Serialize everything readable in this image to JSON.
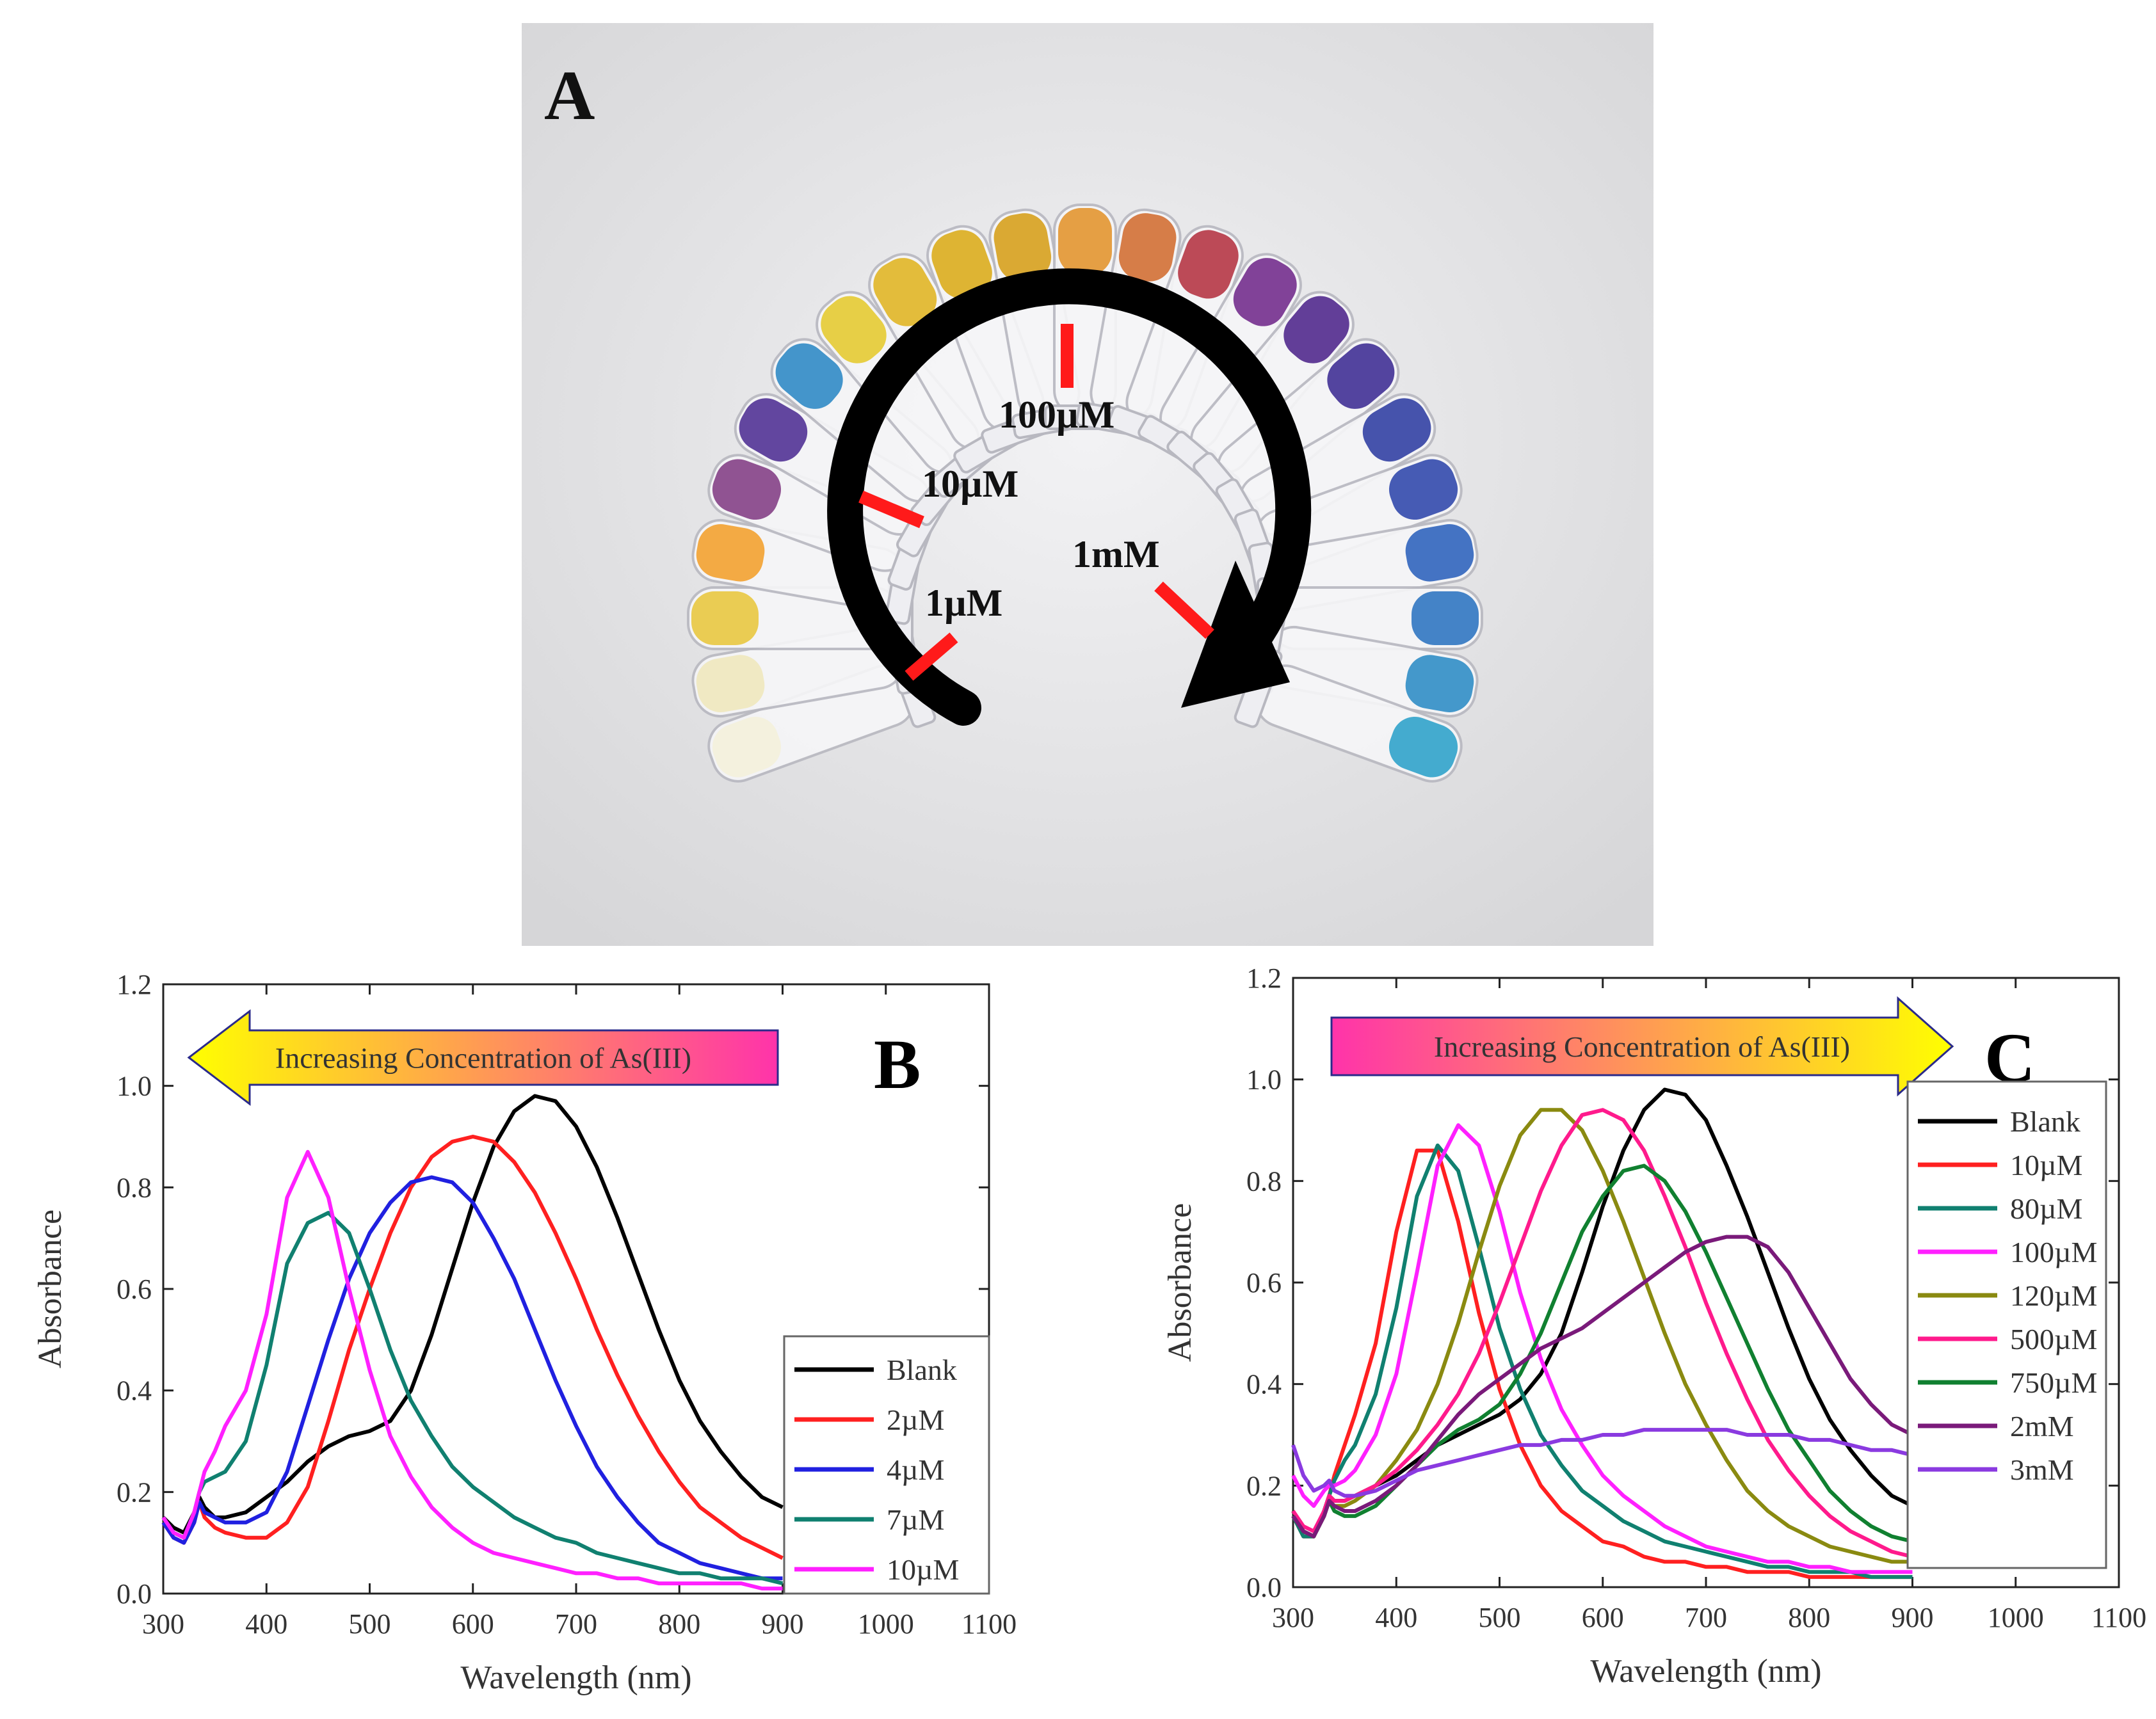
{
  "panel_a": {
    "label": "A",
    "markers": [
      "100µM",
      "10µM",
      "1µM",
      "1mM"
    ],
    "tube_colors": [
      "#f3f0dc",
      "#efe8c0",
      "#e9c94a",
      "#f2a53a",
      "#8a4a8c",
      "#5a3c9a",
      "#3a8fc8",
      "#e6cc3c",
      "#e2b830",
      "#dcb028",
      "#d8a428",
      "#e49a3a",
      "#d4763e",
      "#b8404e",
      "#7a3892",
      "#5a3492",
      "#4a3a9a",
      "#3c4aa8",
      "#3c52b0",
      "#3a6cc0",
      "#3a7cc4",
      "#3a92c8",
      "#3aa6cc"
    ]
  },
  "chart_data": [
    {
      "type": "line",
      "panel_label": "B",
      "banner": "Increasing Concentration of As(III)",
      "banner_direction": "left",
      "xlabel": "Wavelength (nm)",
      "ylabel": "Absorbance",
      "xlim": [
        300,
        1100
      ],
      "ylim": [
        0.0,
        1.2
      ],
      "xticks": [
        "300",
        "400",
        "500",
        "600",
        "700",
        "800",
        "900",
        "1000",
        "1100"
      ],
      "yticks": [
        "0.0",
        "0.2",
        "0.4",
        "0.6",
        "0.8",
        "1.0",
        "1.2"
      ],
      "x": [
        300,
        310,
        320,
        330,
        335,
        340,
        350,
        360,
        380,
        400,
        420,
        440,
        460,
        480,
        500,
        520,
        540,
        560,
        580,
        600,
        620,
        640,
        660,
        680,
        700,
        720,
        740,
        760,
        780,
        800,
        820,
        840,
        860,
        880,
        900
      ],
      "series": [
        {
          "name": "Blank",
          "color": "#000000",
          "values": [
            0.15,
            0.13,
            0.12,
            0.16,
            0.19,
            0.17,
            0.15,
            0.15,
            0.16,
            0.19,
            0.22,
            0.26,
            0.29,
            0.31,
            0.32,
            0.34,
            0.4,
            0.51,
            0.64,
            0.77,
            0.88,
            0.95,
            0.98,
            0.97,
            0.92,
            0.84,
            0.74,
            0.63,
            0.52,
            0.42,
            0.34,
            0.28,
            0.23,
            0.19,
            0.17
          ]
        },
        {
          "name": "2µM",
          "color": "#ff2020",
          "values": [
            0.14,
            0.11,
            0.1,
            0.14,
            0.18,
            0.15,
            0.13,
            0.12,
            0.11,
            0.11,
            0.14,
            0.21,
            0.34,
            0.48,
            0.6,
            0.71,
            0.8,
            0.86,
            0.89,
            0.9,
            0.89,
            0.85,
            0.79,
            0.71,
            0.62,
            0.52,
            0.43,
            0.35,
            0.28,
            0.22,
            0.17,
            0.14,
            0.11,
            0.09,
            0.07
          ]
        },
        {
          "name": "4µM",
          "color": "#2020e0",
          "values": [
            0.14,
            0.11,
            0.1,
            0.14,
            0.18,
            0.16,
            0.15,
            0.14,
            0.14,
            0.16,
            0.24,
            0.37,
            0.5,
            0.62,
            0.71,
            0.77,
            0.81,
            0.82,
            0.81,
            0.77,
            0.7,
            0.62,
            0.52,
            0.42,
            0.33,
            0.25,
            0.19,
            0.14,
            0.1,
            0.08,
            0.06,
            0.05,
            0.04,
            0.03,
            0.03
          ]
        },
        {
          "name": "7µM",
          "color": "#108070",
          "values": [
            0.15,
            0.12,
            0.11,
            0.16,
            0.2,
            0.22,
            0.23,
            0.24,
            0.3,
            0.45,
            0.65,
            0.73,
            0.75,
            0.71,
            0.6,
            0.48,
            0.38,
            0.31,
            0.25,
            0.21,
            0.18,
            0.15,
            0.13,
            0.11,
            0.1,
            0.08,
            0.07,
            0.06,
            0.05,
            0.04,
            0.04,
            0.03,
            0.03,
            0.03,
            0.02
          ]
        },
        {
          "name": "10µM",
          "color": "#ff20ff",
          "values": [
            0.15,
            0.12,
            0.11,
            0.16,
            0.2,
            0.24,
            0.28,
            0.33,
            0.4,
            0.55,
            0.78,
            0.87,
            0.78,
            0.6,
            0.44,
            0.31,
            0.23,
            0.17,
            0.13,
            0.1,
            0.08,
            0.07,
            0.06,
            0.05,
            0.04,
            0.04,
            0.03,
            0.03,
            0.02,
            0.02,
            0.02,
            0.02,
            0.02,
            0.01,
            0.01
          ]
        }
      ]
    },
    {
      "type": "line",
      "panel_label": "C",
      "banner": "Increasing Concentration of As(III)",
      "banner_direction": "right",
      "xlabel": "Wavelength (nm)",
      "ylabel": "Absorbance",
      "xlim": [
        300,
        1100
      ],
      "ylim": [
        0.0,
        1.2
      ],
      "xticks": [
        "300",
        "400",
        "500",
        "600",
        "700",
        "800",
        "900",
        "1000",
        "1100"
      ],
      "yticks": [
        "0.0",
        "0.2",
        "0.4",
        "0.6",
        "0.8",
        "1.0",
        "1.2"
      ],
      "x": [
        300,
        310,
        320,
        330,
        335,
        340,
        350,
        360,
        380,
        400,
        420,
        440,
        460,
        480,
        500,
        520,
        540,
        560,
        580,
        600,
        620,
        640,
        660,
        680,
        700,
        720,
        740,
        760,
        780,
        800,
        820,
        840,
        860,
        880,
        900
      ],
      "series": [
        {
          "name": "Blank",
          "color": "#000000",
          "values": [
            0.15,
            0.11,
            0.1,
            0.15,
            0.18,
            0.17,
            0.17,
            0.18,
            0.2,
            0.22,
            0.25,
            0.28,
            0.3,
            0.32,
            0.34,
            0.37,
            0.42,
            0.5,
            0.62,
            0.75,
            0.86,
            0.94,
            0.98,
            0.97,
            0.92,
            0.83,
            0.73,
            0.62,
            0.51,
            0.41,
            0.33,
            0.27,
            0.22,
            0.18,
            0.16
          ]
        },
        {
          "name": "10µM",
          "color": "#ff2020",
          "values": [
            0.14,
            0.1,
            0.1,
            0.15,
            0.18,
            0.22,
            0.28,
            0.34,
            0.48,
            0.7,
            0.86,
            0.86,
            0.72,
            0.54,
            0.39,
            0.28,
            0.2,
            0.15,
            0.12,
            0.09,
            0.08,
            0.06,
            0.05,
            0.05,
            0.04,
            0.04,
            0.03,
            0.03,
            0.03,
            0.02,
            0.02,
            0.02,
            0.02,
            0.02,
            0.02
          ]
        },
        {
          "name": "80µM",
          "color": "#108070",
          "values": [
            0.14,
            0.1,
            0.1,
            0.15,
            0.18,
            0.21,
            0.25,
            0.28,
            0.38,
            0.55,
            0.77,
            0.87,
            0.82,
            0.67,
            0.51,
            0.39,
            0.3,
            0.24,
            0.19,
            0.16,
            0.13,
            0.11,
            0.09,
            0.08,
            0.07,
            0.06,
            0.05,
            0.04,
            0.04,
            0.03,
            0.03,
            0.03,
            0.02,
            0.02,
            0.02
          ]
        },
        {
          "name": "100µM",
          "color": "#ff20ff",
          "values": [
            0.22,
            0.18,
            0.16,
            0.19,
            0.2,
            0.2,
            0.21,
            0.23,
            0.3,
            0.42,
            0.62,
            0.83,
            0.91,
            0.87,
            0.74,
            0.58,
            0.45,
            0.35,
            0.28,
            0.22,
            0.18,
            0.15,
            0.12,
            0.1,
            0.08,
            0.07,
            0.06,
            0.05,
            0.05,
            0.04,
            0.04,
            0.03,
            0.03,
            0.03,
            0.03
          ]
        },
        {
          "name": "120µM",
          "color": "#8a8a10",
          "values": [
            0.14,
            0.11,
            0.1,
            0.14,
            0.17,
            0.16,
            0.16,
            0.17,
            0.2,
            0.25,
            0.31,
            0.4,
            0.52,
            0.66,
            0.79,
            0.89,
            0.94,
            0.94,
            0.9,
            0.82,
            0.72,
            0.61,
            0.5,
            0.4,
            0.32,
            0.25,
            0.19,
            0.15,
            0.12,
            0.1,
            0.08,
            0.07,
            0.06,
            0.05,
            0.05
          ]
        },
        {
          "name": "500µM",
          "color": "#ff1a8c",
          "values": [
            0.15,
            0.12,
            0.11,
            0.15,
            0.18,
            0.17,
            0.17,
            0.18,
            0.2,
            0.23,
            0.27,
            0.32,
            0.38,
            0.46,
            0.56,
            0.67,
            0.78,
            0.87,
            0.93,
            0.94,
            0.92,
            0.86,
            0.77,
            0.67,
            0.56,
            0.46,
            0.37,
            0.29,
            0.23,
            0.18,
            0.14,
            0.11,
            0.09,
            0.07,
            0.06
          ]
        },
        {
          "name": "750µM",
          "color": "#108030",
          "values": [
            0.14,
            0.11,
            0.1,
            0.14,
            0.17,
            0.15,
            0.14,
            0.14,
            0.16,
            0.2,
            0.24,
            0.28,
            0.31,
            0.33,
            0.36,
            0.42,
            0.5,
            0.6,
            0.7,
            0.77,
            0.82,
            0.83,
            0.8,
            0.74,
            0.66,
            0.57,
            0.48,
            0.39,
            0.31,
            0.25,
            0.19,
            0.15,
            0.12,
            0.1,
            0.09
          ]
        },
        {
          "name": "2mM",
          "color": "#7a1a7a",
          "values": [
            0.14,
            0.11,
            0.1,
            0.14,
            0.17,
            0.16,
            0.15,
            0.15,
            0.17,
            0.2,
            0.24,
            0.29,
            0.34,
            0.38,
            0.41,
            0.44,
            0.47,
            0.49,
            0.51,
            0.54,
            0.57,
            0.6,
            0.63,
            0.66,
            0.68,
            0.69,
            0.69,
            0.67,
            0.62,
            0.55,
            0.48,
            0.41,
            0.36,
            0.32,
            0.3
          ]
        },
        {
          "name": "3mM",
          "color": "#8a3ae0",
          "values": [
            0.28,
            0.22,
            0.19,
            0.2,
            0.21,
            0.19,
            0.18,
            0.18,
            0.19,
            0.21,
            0.23,
            0.24,
            0.25,
            0.26,
            0.27,
            0.28,
            0.28,
            0.29,
            0.29,
            0.3,
            0.3,
            0.31,
            0.31,
            0.31,
            0.31,
            0.31,
            0.3,
            0.3,
            0.3,
            0.29,
            0.29,
            0.28,
            0.27,
            0.27,
            0.26
          ]
        }
      ]
    }
  ]
}
